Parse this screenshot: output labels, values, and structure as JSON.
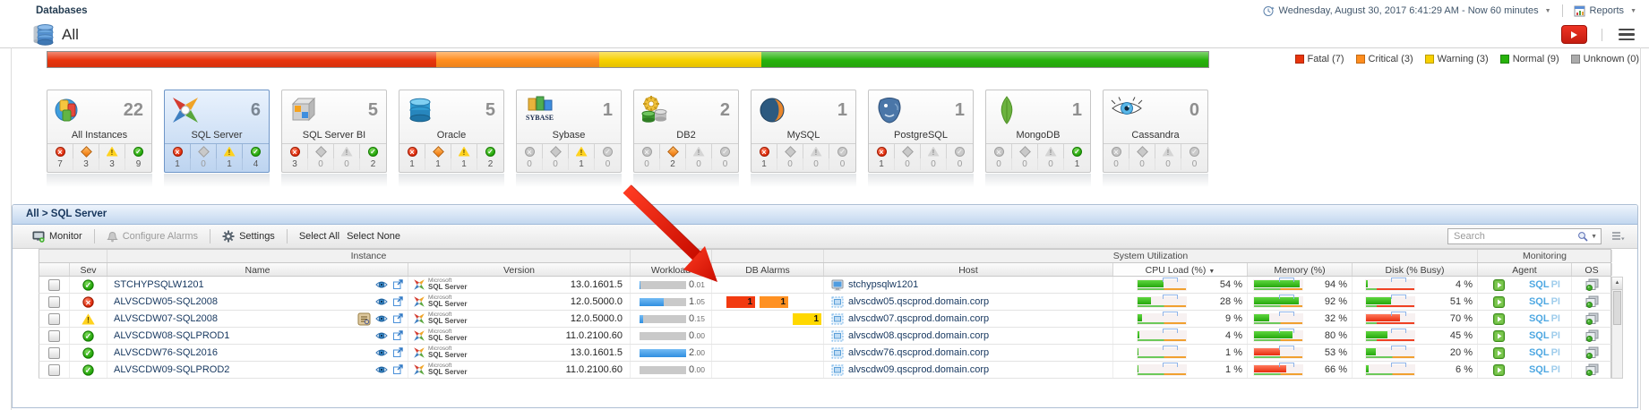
{
  "header": {
    "breadcrumb": "Databases",
    "page_title": "All",
    "time_range_label": "Wednesday, August 30, 2017 6:41:29 AM - Now 60 minutes",
    "reports_label": "Reports"
  },
  "status_summary": {
    "total_instances": 22,
    "segments": [
      {
        "status": "fatal",
        "label": "Fatal (7)",
        "count": 7,
        "color": "#e8340c",
        "bar_pct": 33.5
      },
      {
        "status": "critical",
        "label": "Critical (3)",
        "count": 3,
        "color": "#ff8d1e",
        "bar_pct": 14
      },
      {
        "status": "warning",
        "label": "Warning (3)",
        "count": 3,
        "color": "#f7d000",
        "bar_pct": 14
      },
      {
        "status": "normal",
        "label": "Normal (9)",
        "count": 9,
        "color": "#27b20c",
        "bar_pct": 38.5
      },
      {
        "status": "unknown",
        "label": "Unknown (0)",
        "count": 0,
        "color": "#ababab",
        "bar_pct": 0
      }
    ]
  },
  "tiles": [
    {
      "name": "All Instances",
      "count": 22,
      "icon": "all-instances-logo",
      "selected": false,
      "statuses": {
        "fatal": 7,
        "critical": 3,
        "warning": 3,
        "normal": 9
      }
    },
    {
      "name": "SQL Server",
      "count": 6,
      "icon": "sql-server-logo",
      "selected": true,
      "statuses": {
        "fatal": 1,
        "critical": 0,
        "warning": 1,
        "normal": 4
      }
    },
    {
      "name": "SQL Server BI",
      "count": 5,
      "icon": "sql-server-bi-logo",
      "selected": false,
      "statuses": {
        "fatal": 3,
        "critical": 0,
        "warning": 0,
        "normal": 2
      }
    },
    {
      "name": "Oracle",
      "count": 5,
      "icon": "oracle-logo",
      "selected": false,
      "statuses": {
        "fatal": 1,
        "critical": 1,
        "warning": 1,
        "normal": 2
      }
    },
    {
      "name": "Sybase",
      "count": 1,
      "icon": "sybase-logo",
      "selected": false,
      "statuses": {
        "fatal": 0,
        "critical": 0,
        "warning": 1,
        "normal": 0
      }
    },
    {
      "name": "DB2",
      "count": 2,
      "icon": "db2-logo",
      "selected": false,
      "statuses": {
        "fatal": 0,
        "critical": 2,
        "warning": 0,
        "normal": 0
      }
    },
    {
      "name": "MySQL",
      "count": 1,
      "icon": "mysql-logo",
      "selected": false,
      "statuses": {
        "fatal": 1,
        "critical": 0,
        "warning": 0,
        "normal": 0
      }
    },
    {
      "name": "PostgreSQL",
      "count": 1,
      "icon": "postgresql-logo",
      "selected": false,
      "statuses": {
        "fatal": 1,
        "critical": 0,
        "warning": 0,
        "normal": 0
      }
    },
    {
      "name": "MongoDB",
      "count": 1,
      "icon": "mongodb-logo",
      "selected": false,
      "statuses": {
        "fatal": 0,
        "critical": 0,
        "warning": 0,
        "normal": 1
      }
    },
    {
      "name": "Cassandra",
      "count": 0,
      "icon": "cassandra-logo",
      "selected": false,
      "statuses": {
        "fatal": 0,
        "critical": 0,
        "warning": 0,
        "normal": 0
      }
    }
  ],
  "panel": {
    "breadcrumb": "All > SQL Server",
    "toolbar": {
      "monitor_label": "Monitor",
      "configure_alarms_label": "Configure Alarms",
      "settings_label": "Settings",
      "select_all_label": "Select All",
      "select_none_label": "Select None",
      "search_placeholder": "Search"
    },
    "table": {
      "group_headers": {
        "instance": "Instance",
        "system_utilization": "System Utilization",
        "monitoring": "Monitoring"
      },
      "columns": {
        "sev": "Sev",
        "name": "Name",
        "version": "Version",
        "workload": "Workload",
        "db_alarms": "DB Alarms",
        "host": "Host",
        "cpu": "CPU Load (%)",
        "memory": "Memory (%)",
        "disk": "Disk (% Busy)",
        "agent": "Agent",
        "os": "OS"
      },
      "sorted_column": "cpu",
      "rows": [
        {
          "severity": "normal",
          "name": "STCHYPSQLW1201",
          "product": "Microsoft SQL Server",
          "version": "13.0.1601.5",
          "workload": "0.01",
          "workload_pct": 1,
          "alarms": {},
          "host": "stchypsqlw1201",
          "host_type": "physical",
          "cpu": {
            "value": "54 %",
            "fill": 54,
            "color": "green"
          },
          "memory": {
            "value": "94 %",
            "fill": 94,
            "color": "green"
          },
          "disk": {
            "value": "4 %",
            "fill": 4,
            "color": "green",
            "under": "red"
          },
          "agent": "SQL PI",
          "os": true,
          "report_icon": false
        },
        {
          "severity": "fatal",
          "name": "ALVSCDW05-SQL2008",
          "product": "Microsoft SQL Server",
          "version": "12.0.5000.0",
          "workload": "1.05",
          "workload_pct": 52,
          "alarms": {
            "fatal": 1,
            "critical": 1
          },
          "host": "alvscdw05.qscprod.domain.corp",
          "host_type": "virtual",
          "cpu": {
            "value": "28 %",
            "fill": 28,
            "color": "green"
          },
          "memory": {
            "value": "92 %",
            "fill": 92,
            "color": "green"
          },
          "disk": {
            "value": "51 %",
            "fill": 51,
            "color": "green",
            "under": "red"
          },
          "agent": "SQL PI",
          "os": true,
          "report_icon": false
        },
        {
          "severity": "warning",
          "name": "ALVSCDW07-SQL2008",
          "product": "Microsoft SQL Server",
          "version": "12.0.5000.0",
          "workload": "0.15",
          "workload_pct": 8,
          "alarms": {
            "warning": 1
          },
          "host": "alvscdw07.qscprod.domain.corp",
          "host_type": "virtual",
          "cpu": {
            "value": "9 %",
            "fill": 9,
            "color": "green"
          },
          "memory": {
            "value": "32 %",
            "fill": 32,
            "color": "green"
          },
          "disk": {
            "value": "70 %",
            "fill": 70,
            "color": "red",
            "under": "red"
          },
          "agent": "SQL PI",
          "os": true,
          "report_icon": true
        },
        {
          "severity": "normal",
          "name": "ALVSCDW08-SQLPROD1",
          "product": "Microsoft SQL Server",
          "version": "11.0.2100.60",
          "workload": "0.00",
          "workload_pct": 0,
          "alarms": {},
          "host": "alvscdw08.qscprod.domain.corp",
          "host_type": "virtual",
          "cpu": {
            "value": "4 %",
            "fill": 4,
            "color": "green"
          },
          "memory": {
            "value": "80 %",
            "fill": 80,
            "color": "green"
          },
          "disk": {
            "value": "45 %",
            "fill": 45,
            "color": "green",
            "under": "red"
          },
          "agent": "SQL PI",
          "os": true,
          "report_icon": false
        },
        {
          "severity": "normal",
          "name": "ALVSCDW76-SQL2016",
          "product": "Microsoft SQL Server",
          "version": "13.0.1601.5",
          "workload": "2.00",
          "workload_pct": 100,
          "alarms": {},
          "host": "alvscdw76.qscprod.domain.corp",
          "host_type": "virtual",
          "cpu": {
            "value": "1 %",
            "fill": 1,
            "color": "green"
          },
          "memory": {
            "value": "53 %",
            "fill": 53,
            "color": "red"
          },
          "disk": {
            "value": "20 %",
            "fill": 20,
            "color": "green",
            "under": "std"
          },
          "agent": "SQL PI",
          "os": true,
          "report_icon": false
        },
        {
          "severity": "normal",
          "name": "ALVSCDW09-SQLPROD2",
          "product": "Microsoft SQL Server",
          "version": "11.0.2100.60",
          "workload": "0.00",
          "workload_pct": 0,
          "alarms": {},
          "host": "alvscdw09.qscprod.domain.corp",
          "host_type": "virtual",
          "cpu": {
            "value": "1 %",
            "fill": 1,
            "color": "green"
          },
          "memory": {
            "value": "66 %",
            "fill": 66,
            "color": "red"
          },
          "disk": {
            "value": "6 %",
            "fill": 6,
            "color": "green",
            "under": "std"
          },
          "agent": "SQL PI",
          "os": true,
          "report_icon": false
        }
      ]
    }
  },
  "annotation": {
    "arrow_color": "#df1000",
    "points_at": "DB Alarms"
  }
}
